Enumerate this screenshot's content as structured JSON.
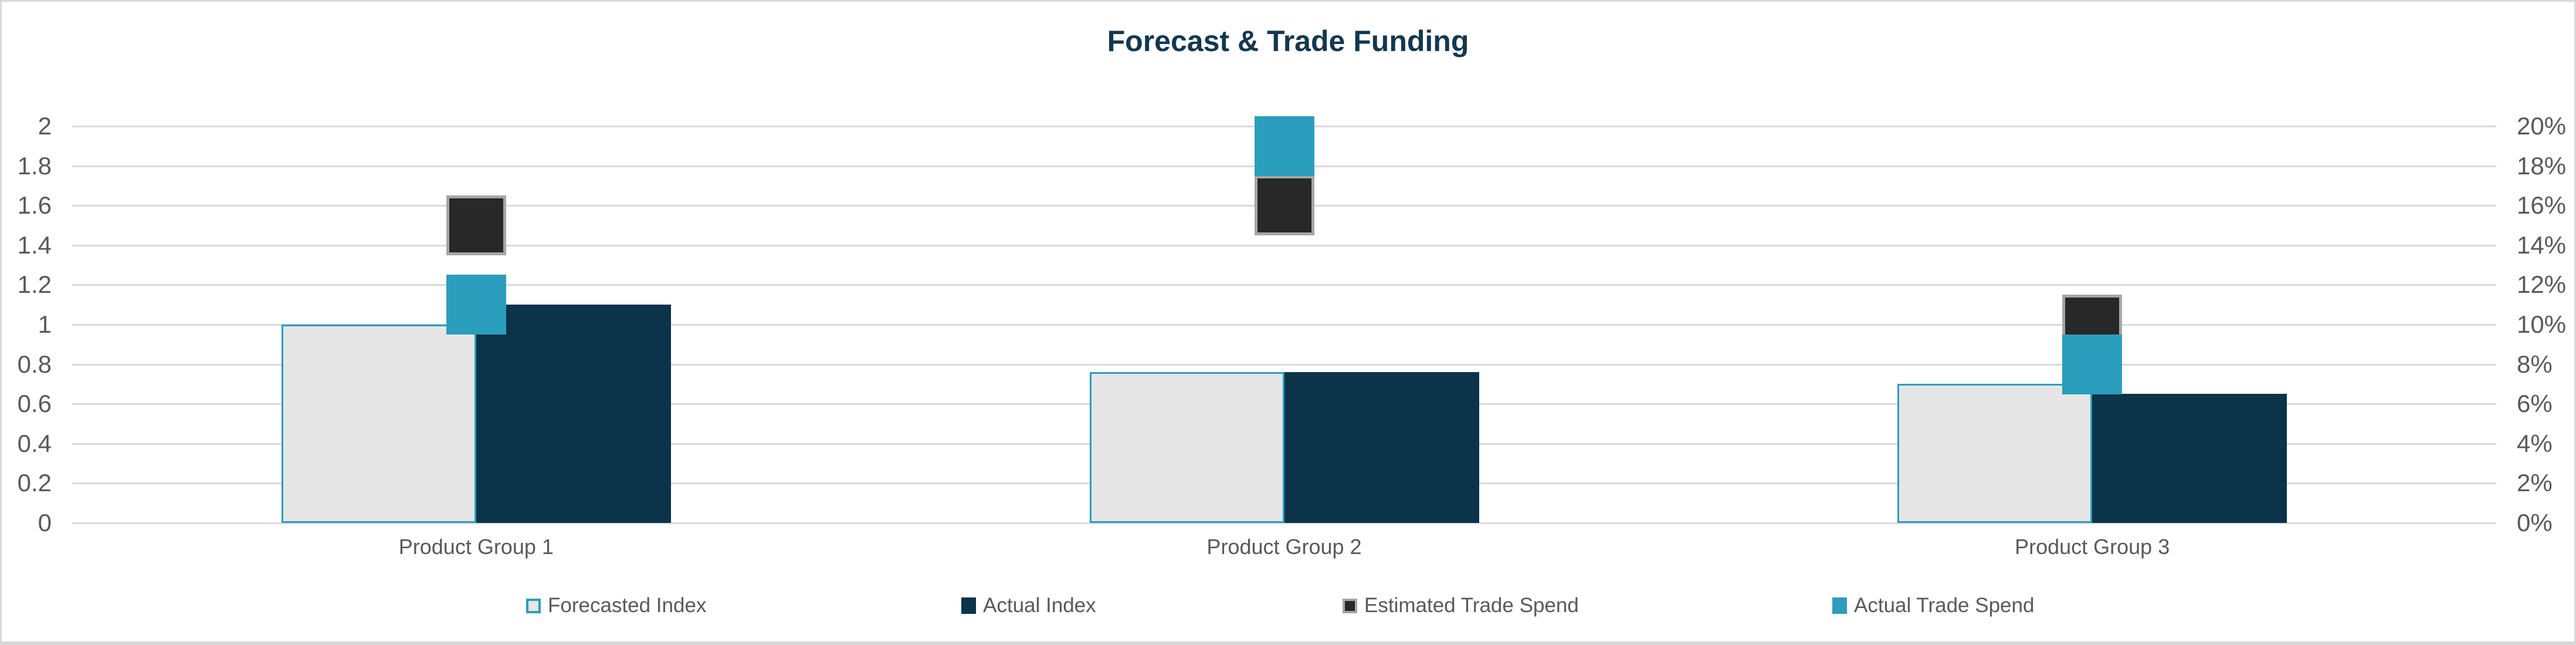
{
  "frame": {
    "background": "#ffffff",
    "border_color": "#d9d9d9"
  },
  "title": {
    "text": "Forecast & Trade Funding",
    "color": "#12384f"
  },
  "axes": {
    "left": {
      "ticks": [
        "2",
        "1.8",
        "1.6",
        "1.4",
        "1.2",
        "1",
        "0.8",
        "0.6",
        "0.4",
        "0.2",
        "0"
      ],
      "text_color": "#595959"
    },
    "right": {
      "ticks": [
        "20%",
        "18%",
        "16%",
        "14%",
        "12%",
        "10%",
        "8%",
        "6%",
        "4%",
        "2%",
        "0%"
      ],
      "text_color": "#595959"
    },
    "x": {
      "labels": [
        "Product Group 1",
        "Product Group 2",
        "Product Group 3"
      ],
      "text_color": "#595959"
    }
  },
  "colors": {
    "forecasted_fill": "#e6e6e6",
    "forecasted_border": "#2b9ebd",
    "actual_fill": "#0b3349",
    "estimated_fill": "#282828",
    "estimated_border": "#a6a6a6",
    "actual_trade_fill": "#2b9ebd",
    "gridline": "#d9d9d9"
  },
  "legend": {
    "items": [
      {
        "label": "Forecasted Index",
        "fill": "#e6e6e6",
        "border": "#2b9ebd"
      },
      {
        "label": "Actual Index",
        "fill": "#0b3349",
        "border": ""
      },
      {
        "label": "Estimated Trade Spend",
        "fill": "#282828",
        "border": "#a6a6a6"
      },
      {
        "label": "Actual Trade Spend",
        "fill": "#2b9ebd",
        "border": ""
      }
    ]
  },
  "chart_data": {
    "type": "bar",
    "title": "Forecast & Trade Funding",
    "categories": [
      "Product Group 1",
      "Product Group 2",
      "Product Group 3"
    ],
    "series": [
      {
        "name": "Forecasted Index",
        "kind": "bar",
        "axis": "left",
        "values": [
          1.0,
          0.76,
          0.7
        ],
        "fill": "#e6e6e6",
        "border": "#2b9ebd"
      },
      {
        "name": "Actual Index",
        "kind": "bar",
        "axis": "left",
        "values": [
          1.1,
          0.76,
          0.65
        ],
        "fill": "#0b3349",
        "border": ""
      },
      {
        "name": "Estimated Trade Spend",
        "kind": "square_marker",
        "axis": "right",
        "values": [
          15,
          16,
          10
        ],
        "fill": "#282828",
        "border": "#a6a6a6"
      },
      {
        "name": "Actual Trade Spend",
        "kind": "square_marker",
        "axis": "right",
        "values": [
          11,
          19,
          8
        ],
        "fill": "#2b9ebd",
        "border": ""
      }
    ],
    "left_axis": {
      "min": 0,
      "max": 2,
      "step": 0.2,
      "unit": "index"
    },
    "right_axis": {
      "min": 0,
      "max": 20,
      "step": 2,
      "unit": "%"
    },
    "gridlines": true,
    "legend_position": "bottom",
    "xlabel": "",
    "ylabel": ""
  }
}
